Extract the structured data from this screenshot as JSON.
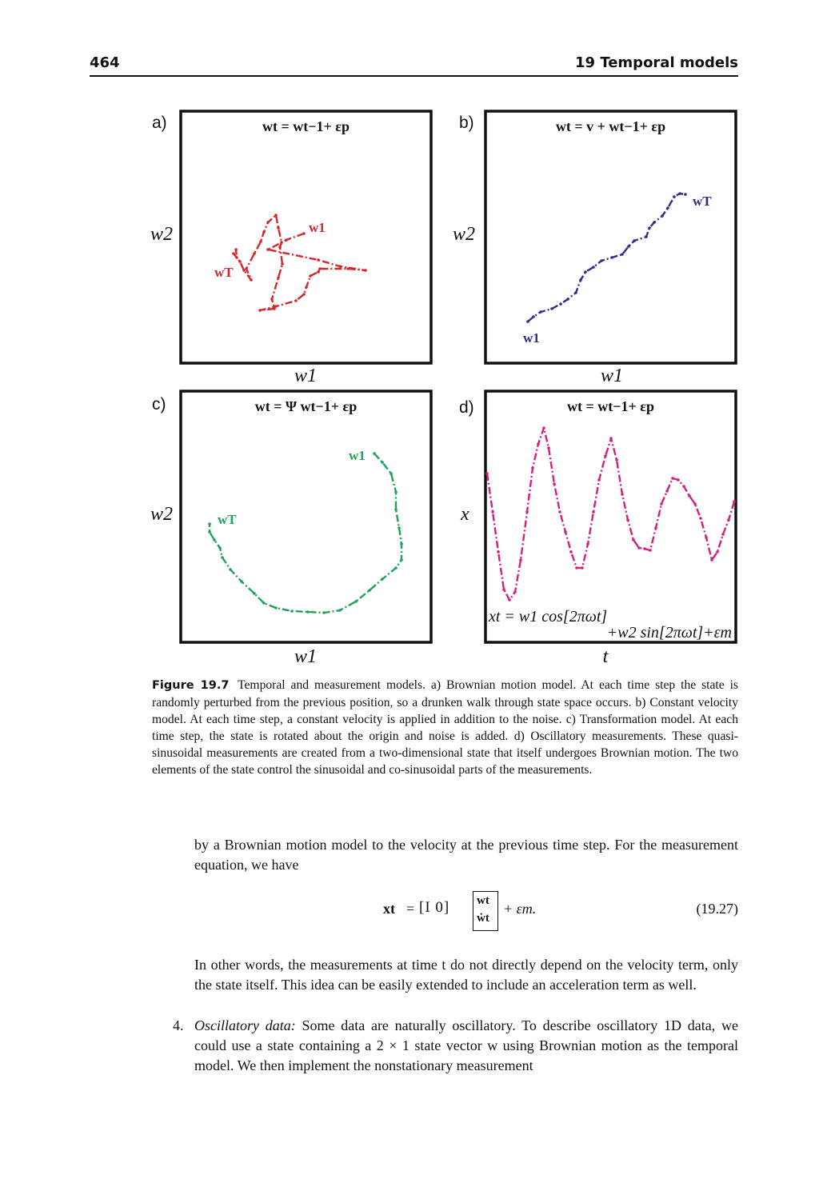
{
  "header": {
    "page_number": "464",
    "chapter_title": "19 Temporal models"
  },
  "figure": {
    "panels": [
      {
        "label": "a)",
        "equation": "wt = wt−1+ εp",
        "xlabel": "w1",
        "ylabel": "w2",
        "color": "#d7262b",
        "start_label": "w1",
        "end_label": "wT",
        "path": [
          [
            380,
            292
          ],
          [
            358,
            300
          ],
          [
            335,
            312
          ],
          [
            398,
            325
          ],
          [
            425,
            333
          ],
          [
            457,
            338
          ],
          [
            435,
            336
          ],
          [
            400,
            336
          ],
          [
            398,
            340
          ],
          [
            388,
            345
          ],
          [
            383,
            359
          ],
          [
            380,
            368
          ],
          [
            370,
            376
          ],
          [
            345,
            383
          ],
          [
            325,
            388
          ],
          [
            343,
            386
          ],
          [
            340,
            374
          ],
          [
            348,
            347
          ],
          [
            353,
            330
          ],
          [
            350,
            309
          ],
          [
            352,
            303
          ],
          [
            348,
            285
          ],
          [
            345,
            269
          ],
          [
            335,
            278
          ],
          [
            330,
            290
          ],
          [
            326,
            302
          ],
          [
            318,
            317
          ],
          [
            308,
            336
          ],
          [
            314,
            350
          ],
          [
            305,
            338
          ],
          [
            300,
            327
          ],
          [
            292,
            317
          ],
          [
            296,
            322
          ],
          [
            295,
            312
          ]
        ]
      },
      {
        "label": "b)",
        "equation": "wt = v + wt−1+ εp",
        "xlabel": "w1",
        "ylabel": "w2",
        "color": "#2d2e85",
        "start_label": "w1",
        "end_label": "wT",
        "path": [
          [
            660,
            402
          ],
          [
            667,
            396
          ],
          [
            676,
            390
          ],
          [
            690,
            386
          ],
          [
            701,
            380
          ],
          [
            710,
            374
          ],
          [
            720,
            366
          ],
          [
            726,
            350
          ],
          [
            732,
            340
          ],
          [
            742,
            334
          ],
          [
            752,
            326
          ],
          [
            765,
            322
          ],
          [
            778,
            318
          ],
          [
            786,
            308
          ],
          [
            793,
            301
          ],
          [
            808,
            296
          ],
          [
            812,
            285
          ],
          [
            818,
            278
          ],
          [
            828,
            270
          ],
          [
            835,
            260
          ],
          [
            843,
            246
          ],
          [
            850,
            242
          ],
          [
            857,
            243
          ]
        ]
      },
      {
        "label": "c)",
        "equation": "wt = Ψ wt−1+ εp",
        "xlabel": "w1",
        "ylabel": "w2",
        "color": "#1ea25a",
        "start_label": "w1",
        "end_label": "wT",
        "path": [
          [
            468,
            567
          ],
          [
            478,
            578
          ],
          [
            489,
            592
          ],
          [
            495,
            615
          ],
          [
            495,
            637
          ],
          [
            499,
            660
          ],
          [
            502,
            680
          ],
          [
            502,
            700
          ],
          [
            495,
            710
          ],
          [
            478,
            724
          ],
          [
            462,
            738
          ],
          [
            445,
            752
          ],
          [
            425,
            763
          ],
          [
            405,
            766
          ],
          [
            385,
            765
          ],
          [
            365,
            764
          ],
          [
            345,
            760
          ],
          [
            330,
            754
          ],
          [
            318,
            742
          ],
          [
            302,
            727
          ],
          [
            288,
            712
          ],
          [
            278,
            697
          ],
          [
            275,
            685
          ],
          [
            268,
            675
          ],
          [
            262,
            665
          ],
          [
            262,
            655
          ]
        ]
      },
      {
        "label": "d)",
        "equation": "wt = wt−1+ εp",
        "xlabel": "t",
        "ylabel": "x",
        "color": "#d1217f",
        "annotation_line1": "xt = w1 cos[2πωt]",
        "annotation_line2": "+w2 sin[2πωt]+εm",
        "path": [
          [
            609,
            592
          ],
          [
            616,
            640
          ],
          [
            623,
            690
          ],
          [
            630,
            737
          ],
          [
            637,
            750
          ],
          [
            644,
            740
          ],
          [
            651,
            700
          ],
          [
            659,
            640
          ],
          [
            666,
            585
          ],
          [
            673,
            555
          ],
          [
            680,
            535
          ],
          [
            686,
            560
          ],
          [
            693,
            605
          ],
          [
            700,
            640
          ],
          [
            707,
            665
          ],
          [
            714,
            690
          ],
          [
            721,
            710
          ],
          [
            728,
            710
          ],
          [
            735,
            680
          ],
          [
            742,
            640
          ],
          [
            749,
            600
          ],
          [
            757,
            570
          ],
          [
            764,
            548
          ],
          [
            771,
            575
          ],
          [
            778,
            618
          ],
          [
            785,
            650
          ],
          [
            792,
            675
          ],
          [
            799,
            685
          ],
          [
            806,
            686
          ],
          [
            813,
            688
          ],
          [
            820,
            660
          ],
          [
            827,
            630
          ],
          [
            834,
            614
          ],
          [
            841,
            598
          ],
          [
            848,
            600
          ],
          [
            855,
            608
          ],
          [
            862,
            620
          ],
          [
            869,
            630
          ],
          [
            876,
            648
          ],
          [
            883,
            672
          ],
          [
            890,
            700
          ],
          [
            897,
            690
          ],
          [
            904,
            668
          ],
          [
            911,
            650
          ],
          [
            918,
            627
          ]
        ]
      }
    ],
    "caption": {
      "label": "Figure 19.7",
      "text": "Temporal and measurement models. a) Brownian motion model. At each time step the state is randomly perturbed from the previous position, so a drunken walk through state space occurs. b) Constant velocity model. At each time step, a constant velocity is applied in addition to the noise. c) Transformation model. At each time step, the state is rotated about the origin and noise is added. d) Oscillatory measurements. These quasi-sinusoidal measurements are created from a two-dimensional state that itself undergoes Brownian motion. The two elements of the state control the sinusoidal and co-sinusoidal parts of the measurements."
    }
  },
  "body": {
    "paragraph1": "by a Brownian motion model to the velocity at the previous time step. For the measurement equation, we have",
    "equation": {
      "lhs": "xt",
      "equals": "=",
      "row": "[I  0]",
      "vec_top": "wt",
      "vec_bottom": "ẇt",
      "tail": "+ εm.",
      "number": "(19.27)"
    },
    "paragraph2": "In other words, the measurements at time t do not directly depend on the velocity term, only the state itself. This idea can be easily extended to include an acceleration term as well.",
    "item_number": "4.",
    "item_title": "Oscillatory data:",
    "item_text": "Some data are naturally oscillatory. To describe oscillatory 1D data, we could use a state containing a 2 × 1 state vector w using Brownian motion as the temporal model. We then implement the nonstationary measurement"
  }
}
